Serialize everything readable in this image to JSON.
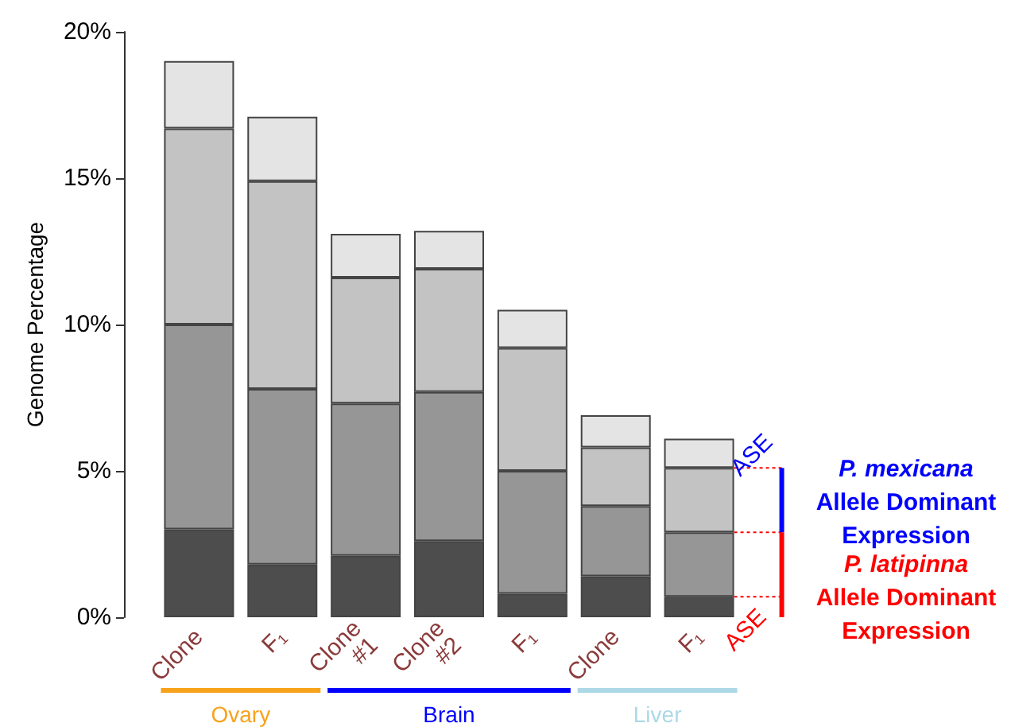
{
  "chart_data": {
    "type": "bar",
    "stacked": true,
    "ylabel": "Genome Percentage",
    "categories": [
      "Clone",
      "F₁",
      "Clone #1",
      "Clone #2",
      "F₁",
      "Clone",
      "F₁"
    ],
    "series": [
      {
        "color": "#4d4d4d",
        "values": [
          3.0,
          1.8,
          2.1,
          2.6,
          0.8,
          1.4,
          0.7
        ]
      },
      {
        "color": "#969696",
        "values": [
          7.0,
          6.0,
          5.2,
          5.1,
          4.2,
          2.4,
          2.2
        ]
      },
      {
        "color": "#c3c3c3",
        "values": [
          6.7,
          7.1,
          4.3,
          4.2,
          4.2,
          2.0,
          2.2
        ]
      },
      {
        "color": "#e4e4e4",
        "values": [
          2.3,
          2.2,
          1.5,
          1.3,
          1.3,
          1.1,
          1.0
        ]
      }
    ],
    "ylim": [
      0,
      20
    ],
    "yticks": [
      {
        "value": 0,
        "label": "0%"
      },
      {
        "value": 5,
        "label": "5%"
      },
      {
        "value": 10,
        "label": "10%"
      },
      {
        "value": 15,
        "label": "15%"
      },
      {
        "value": 20,
        "label": "20%"
      }
    ],
    "annotations": [
      "Ovary",
      "Brain",
      "Liver",
      "ASE",
      "ASE",
      "P. mexicana\nAllele Dominant\nExpression",
      "P. latipinna\nAllele Dominant\nExpression"
    ]
  }
}
